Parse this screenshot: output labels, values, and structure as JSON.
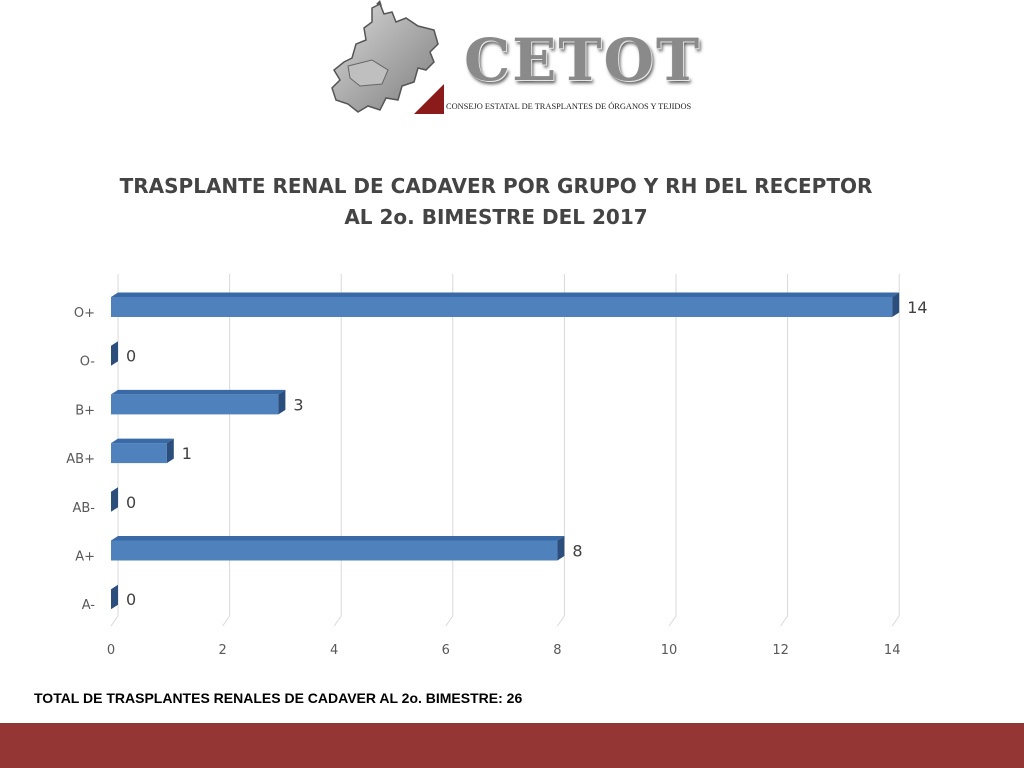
{
  "header": {
    "logo_word": "CETOT",
    "logo_subtitle": "CONSEJO ESTATAL DE TRASPLANTES DE ÓRGANOS Y TEJIDOS"
  },
  "colors": {
    "bar": "#4f81bd",
    "bar_side": "#2c4e7c",
    "footer_band": "#943634",
    "logo_accent": "#8b1a1a"
  },
  "chart_data": {
    "type": "bar",
    "orientation": "horizontal",
    "title": "TRASPLANTE RENAL DE CADAVER POR GRUPO Y RH DEL  RECEPTOR",
    "subtitle": "AL 2o. BIMESTRE DEL 2017",
    "categories": [
      "O+",
      "O-",
      "B+",
      "AB+",
      "AB-",
      "A+",
      "A-"
    ],
    "values": [
      14,
      0,
      3,
      1,
      0,
      8,
      0
    ],
    "x_ticks": [
      0,
      2,
      4,
      6,
      8,
      10,
      12,
      14
    ],
    "xlim": [
      0,
      14
    ],
    "grid": true,
    "legend": "none",
    "style": "3d"
  },
  "footer": {
    "total_note": "TOTAL DE TRASPLANTES RENALES DE CADAVER AL 2o. BIMESTRE: 26"
  }
}
